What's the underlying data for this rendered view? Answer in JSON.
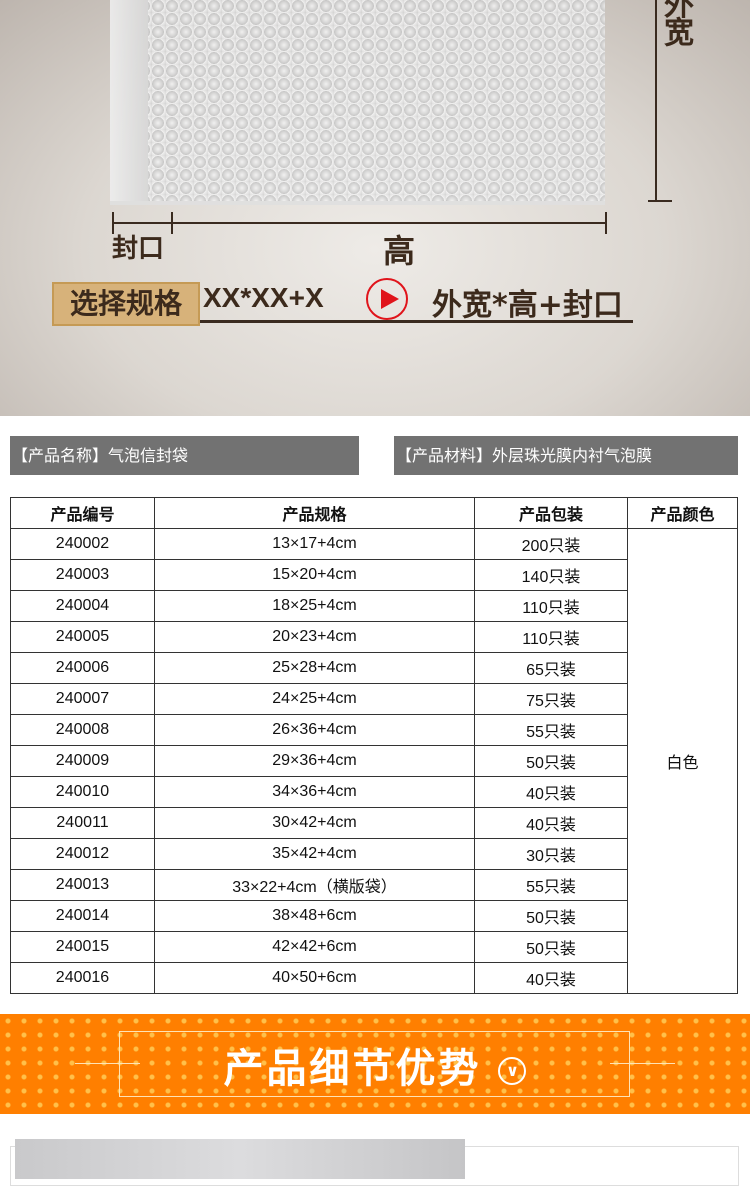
{
  "hero": {
    "width_label": "外宽",
    "seal_label": "封口",
    "height_label": "高",
    "spec_button": "选择规格",
    "spec_format": "XX*XX+X",
    "spec_meaning": "外宽*高+封口",
    "arrow_color": "#e0141b"
  },
  "info": {
    "name": "【产品名称】气泡信封袋",
    "material": "【产品材料】外层珠光膜内衬气泡膜"
  },
  "table": {
    "headers": [
      "产品编号",
      "产品规格",
      "产品包装",
      "产品颜色"
    ],
    "color": "白色",
    "rows": [
      [
        "240002",
        "13×17+4cm",
        "200只装"
      ],
      [
        "240003",
        "15×20+4cm",
        "140只装"
      ],
      [
        "240004",
        "18×25+4cm",
        "110只装"
      ],
      [
        "240005",
        "20×23+4cm",
        "110只装"
      ],
      [
        "240006",
        "25×28+4cm",
        "65只装"
      ],
      [
        "240007",
        "24×25+4cm",
        "75只装"
      ],
      [
        "240008",
        "26×36+4cm",
        "55只装"
      ],
      [
        "240009",
        "29×36+4cm",
        "50只装"
      ],
      [
        "240010",
        "34×36+4cm",
        "40只装"
      ],
      [
        "240011",
        "30×42+4cm",
        "40只装"
      ],
      [
        "240012",
        "35×42+4cm",
        "30只装"
      ],
      [
        "240013",
        "33×22+4cm（横版袋）",
        "55只装"
      ],
      [
        "240014",
        "38×48+6cm",
        "50只装"
      ],
      [
        "240015",
        "42×42+6cm",
        "50只装"
      ],
      [
        "240016",
        "40×50+6cm",
        "40只装"
      ]
    ]
  },
  "banner": {
    "title": "产品细节优势",
    "chevron": "chevron-down-circle-icon",
    "color": "#ff7f00"
  }
}
